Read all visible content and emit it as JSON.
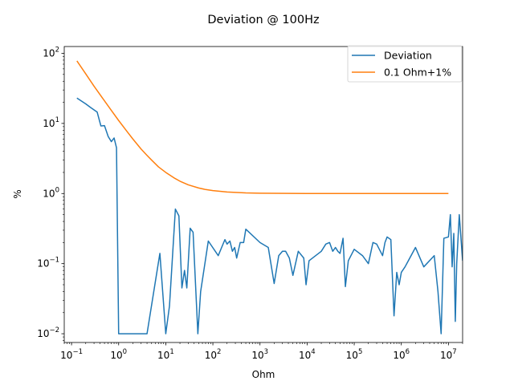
{
  "chart_data": {
    "type": "line",
    "title": "Deviation @ 100Hz",
    "xlabel": "Ohm",
    "ylabel": "%",
    "xscale": "log",
    "yscale": "log",
    "xlim": [
      0.07,
      20000000
    ],
    "ylim": [
      0.0075,
      125
    ],
    "xticks": [
      {
        "value": 0.1,
        "base": "10",
        "exp": "−1"
      },
      {
        "value": 1,
        "base": "10",
        "exp": "0"
      },
      {
        "value": 10,
        "base": "10",
        "exp": "1"
      },
      {
        "value": 100,
        "base": "10",
        "exp": "2"
      },
      {
        "value": 1000,
        "base": "10",
        "exp": "3"
      },
      {
        "value": 10000,
        "base": "10",
        "exp": "4"
      },
      {
        "value": 100000,
        "base": "10",
        "exp": "5"
      },
      {
        "value": 1000000,
        "base": "10",
        "exp": "6"
      },
      {
        "value": 10000000,
        "base": "10",
        "exp": "7"
      }
    ],
    "yticks": [
      {
        "value": 0.01,
        "base": "10",
        "exp": "−2"
      },
      {
        "value": 0.1,
        "base": "10",
        "exp": "−1"
      },
      {
        "value": 1,
        "base": "10",
        "exp": "0"
      },
      {
        "value": 10,
        "base": "10",
        "exp": "1"
      },
      {
        "value": 100,
        "base": "10",
        "exp": "2"
      }
    ],
    "grid": false,
    "legend_position": "top-right",
    "series": [
      {
        "name": "Deviation",
        "color": "#1f77b4",
        "points": [
          [
            0.13,
            23
          ],
          [
            0.2,
            19
          ],
          [
            0.25,
            17
          ],
          [
            0.35,
            14.5
          ],
          [
            0.42,
            9.2
          ],
          [
            0.5,
            9.3
          ],
          [
            0.6,
            6.5
          ],
          [
            0.7,
            5.5
          ],
          [
            0.8,
            6.2
          ],
          [
            0.9,
            4.5
          ],
          [
            1.0,
            0.01
          ],
          [
            1.5,
            0.01
          ],
          [
            4.0,
            0.01
          ],
          [
            7.5,
            0.14
          ],
          [
            10,
            0.01
          ],
          [
            12,
            0.025
          ],
          [
            16,
            0.6
          ],
          [
            19,
            0.48
          ],
          [
            22,
            0.045
          ],
          [
            25,
            0.08
          ],
          [
            28,
            0.045
          ],
          [
            33,
            0.32
          ],
          [
            38,
            0.28
          ],
          [
            48,
            0.01
          ],
          [
            55,
            0.04
          ],
          [
            80,
            0.21
          ],
          [
            130,
            0.13
          ],
          [
            180,
            0.22
          ],
          [
            200,
            0.19
          ],
          [
            230,
            0.21
          ],
          [
            260,
            0.15
          ],
          [
            290,
            0.17
          ],
          [
            320,
            0.12
          ],
          [
            380,
            0.2
          ],
          [
            450,
            0.2
          ],
          [
            500,
            0.31
          ],
          [
            1000,
            0.2
          ],
          [
            1500,
            0.17
          ],
          [
            2000,
            0.052
          ],
          [
            2500,
            0.13
          ],
          [
            3000,
            0.15
          ],
          [
            3500,
            0.15
          ],
          [
            4200,
            0.12
          ],
          [
            5000,
            0.068
          ],
          [
            6500,
            0.15
          ],
          [
            8500,
            0.12
          ],
          [
            9500,
            0.05
          ],
          [
            11000,
            0.11
          ],
          [
            20000,
            0.15
          ],
          [
            25000,
            0.19
          ],
          [
            30000,
            0.2
          ],
          [
            35000,
            0.15
          ],
          [
            40000,
            0.17
          ],
          [
            45000,
            0.15
          ],
          [
            50000,
            0.14
          ],
          [
            58000,
            0.23
          ],
          [
            65000,
            0.047
          ],
          [
            75000,
            0.11
          ],
          [
            100000,
            0.16
          ],
          [
            150000,
            0.13
          ],
          [
            200000,
            0.1
          ],
          [
            250000,
            0.2
          ],
          [
            300000,
            0.19
          ],
          [
            400000,
            0.13
          ],
          [
            450000,
            0.2
          ],
          [
            500000,
            0.24
          ],
          [
            600000,
            0.22
          ],
          [
            700000,
            0.018
          ],
          [
            800000,
            0.075
          ],
          [
            900000,
            0.05
          ],
          [
            1000000,
            0.075
          ],
          [
            1200000,
            0.09
          ],
          [
            2000000,
            0.17
          ],
          [
            3000000,
            0.09
          ],
          [
            5000000,
            0.13
          ],
          [
            6000000,
            0.04
          ],
          [
            7000000,
            0.01
          ],
          [
            8000000,
            0.23
          ],
          [
            10000000,
            0.24
          ],
          [
            11000000,
            0.5
          ],
          [
            12000000,
            0.09
          ],
          [
            13000000,
            0.27
          ],
          [
            14000000,
            0.015
          ],
          [
            15000000,
            0.1
          ],
          [
            17000000,
            0.5
          ],
          [
            20000000,
            0.11
          ]
        ]
      },
      {
        "name": "0.1 Ohm+1%",
        "color": "#ff7f0e",
        "points": [
          [
            0.13,
            78
          ],
          [
            0.2,
            51
          ],
          [
            0.3,
            34
          ],
          [
            0.5,
            21
          ],
          [
            0.7,
            15.3
          ],
          [
            1.0,
            11
          ],
          [
            1.5,
            7.7
          ],
          [
            2,
            6
          ],
          [
            3,
            4.3
          ],
          [
            4,
            3.5
          ],
          [
            5,
            3
          ],
          [
            7,
            2.4
          ],
          [
            10,
            2.0
          ],
          [
            15,
            1.67
          ],
          [
            20,
            1.5
          ],
          [
            30,
            1.33
          ],
          [
            50,
            1.2
          ],
          [
            70,
            1.14
          ],
          [
            100,
            1.1
          ],
          [
            200,
            1.05
          ],
          [
            500,
            1.02
          ],
          [
            1000,
            1.01
          ],
          [
            10000,
            1.001
          ],
          [
            100000,
            1.0
          ],
          [
            1000000,
            1.0
          ],
          [
            10000000,
            1.0
          ]
        ]
      }
    ]
  }
}
